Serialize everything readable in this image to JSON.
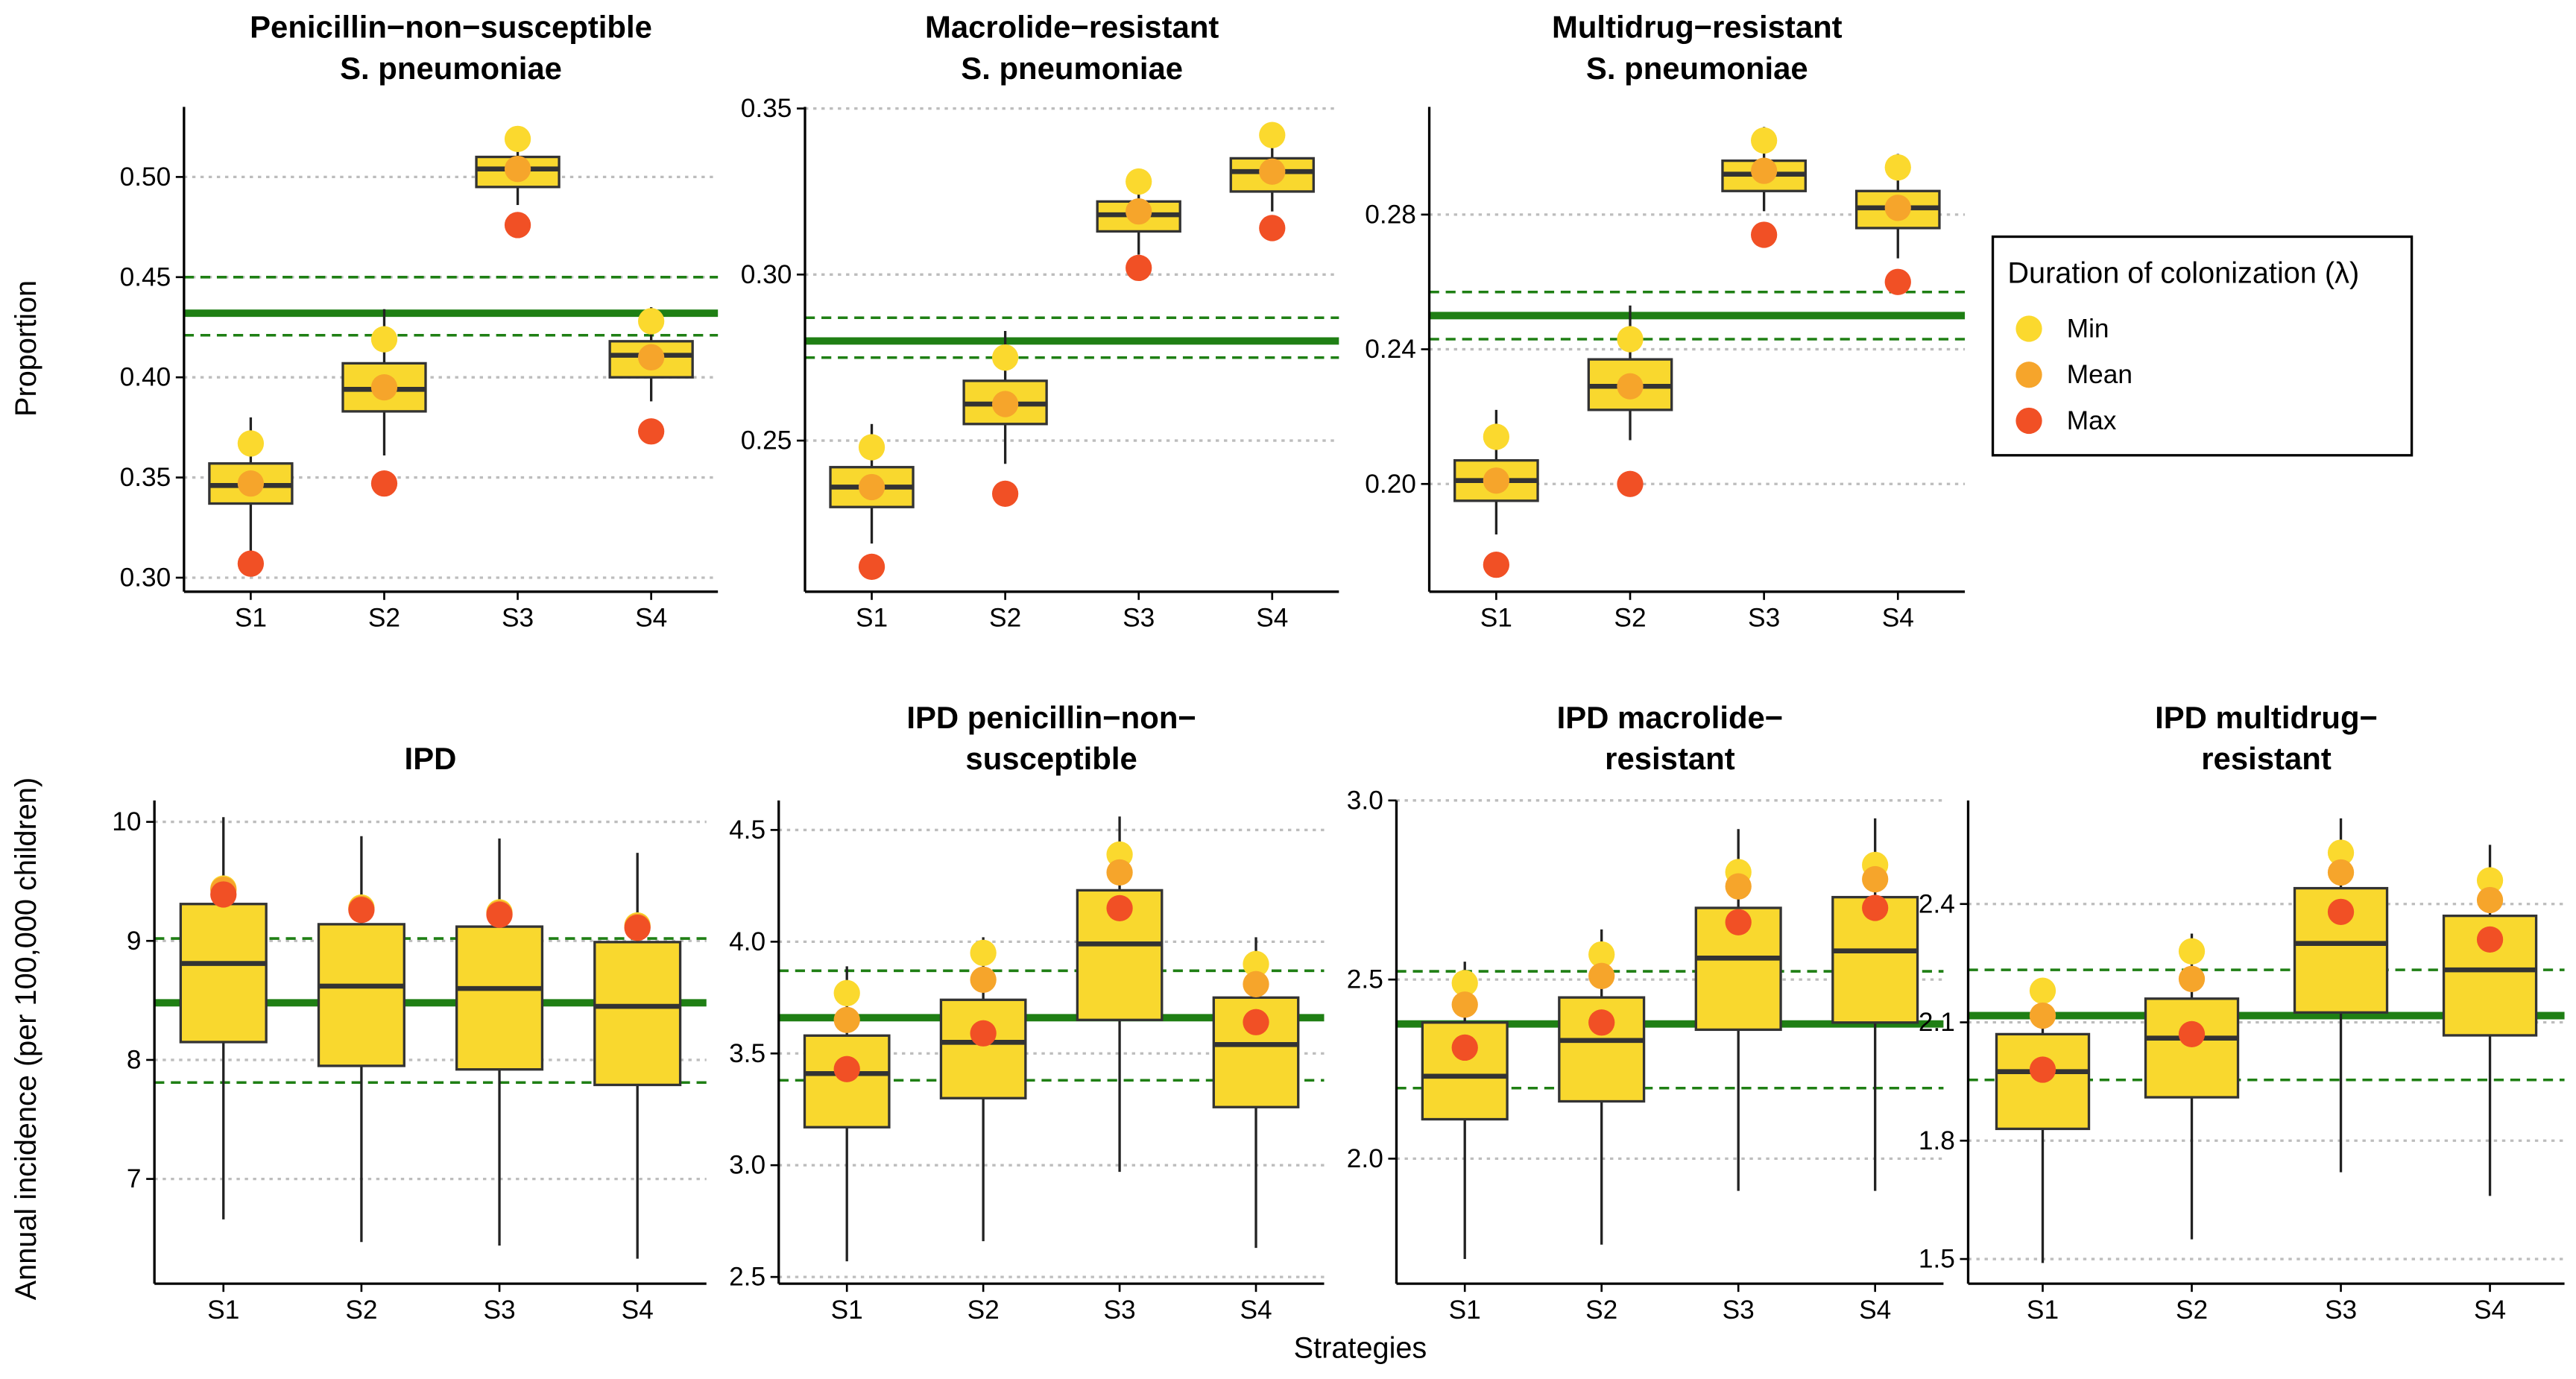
{
  "xlabel": "Strategies",
  "legend_title": "Duration of colonization (λ)",
  "chart_data": [
    {
      "type": "box",
      "title": [
        "Penicillin−non−susceptible",
        "S. pneumoniae"
      ],
      "ylabel": "Proportion",
      "categories": [
        "S1",
        "S2",
        "S3",
        "S4"
      ],
      "whisker_low": [
        0.313,
        0.361,
        0.486,
        0.388
      ],
      "q1": [
        0.337,
        0.383,
        0.495,
        0.4
      ],
      "median": [
        0.346,
        0.394,
        0.504,
        0.411
      ],
      "q3": [
        0.357,
        0.407,
        0.51,
        0.418
      ],
      "whisker_high": [
        0.38,
        0.434,
        0.525,
        0.435
      ],
      "series": [
        {
          "name": "Min",
          "color": "#fbd92e",
          "values": [
            0.367,
            0.419,
            0.519,
            0.428
          ]
        },
        {
          "name": "Mean",
          "color": "#f6a52b",
          "values": [
            0.347,
            0.395,
            0.504,
            0.41
          ]
        },
        {
          "name": "Max",
          "color": "#f15025",
          "values": [
            0.307,
            0.347,
            0.476,
            0.373
          ]
        }
      ],
      "reference": {
        "value": 0.432,
        "low": 0.421,
        "high": 0.45
      },
      "box_color": "#f9d82e",
      "reference_color": "#1f7f14",
      "ylim": [
        0.293,
        0.535
      ],
      "yticks": [
        {
          "value": 0.3,
          "label": "0.30"
        },
        0.35,
        {
          "value": 0.4,
          "label": "0.40"
        },
        0.45,
        {
          "value": 0.5,
          "label": "0.50"
        }
      ],
      "grid": true
    },
    {
      "type": "box",
      "title": [
        "Macrolide−resistant",
        "S. pneumoniae"
      ],
      "categories": [
        "S1",
        "S2",
        "S3",
        "S4"
      ],
      "whisker_low": [
        0.219,
        0.243,
        0.306,
        0.319
      ],
      "q1": [
        0.23,
        0.255,
        0.313,
        0.325
      ],
      "median": [
        0.236,
        0.261,
        0.318,
        0.331
      ],
      "q3": [
        0.242,
        0.268,
        0.322,
        0.335
      ],
      "whisker_high": [
        0.255,
        0.283,
        0.328,
        0.343
      ],
      "series": [
        {
          "name": "Min",
          "color": "#fbd92e",
          "values": [
            0.248,
            0.275,
            0.328,
            0.342
          ]
        },
        {
          "name": "Mean",
          "color": "#f6a52b",
          "values": [
            0.236,
            0.261,
            0.319,
            0.331
          ]
        },
        {
          "name": "Max",
          "color": "#f15025",
          "values": [
            0.212,
            0.234,
            0.302,
            0.314
          ]
        }
      ],
      "reference": {
        "value": 0.28,
        "low": 0.275,
        "high": 0.287
      },
      "box_color": "#f9d82e",
      "reference_color": "#1f7f14",
      "ylim": [
        0.2045,
        0.3505
      ],
      "yticks": [
        0.25,
        {
          "value": 0.3,
          "label": "0.30"
        },
        0.35
      ],
      "grid": true
    },
    {
      "type": "box",
      "title": [
        "Multidrug−resistant",
        "S. pneumoniae"
      ],
      "categories": [
        "S1",
        "S2",
        "S3",
        "S4"
      ],
      "whisker_low": [
        0.185,
        0.213,
        0.281,
        0.267
      ],
      "q1": [
        0.195,
        0.222,
        0.287,
        0.276
      ],
      "median": [
        0.201,
        0.229,
        0.292,
        0.282
      ],
      "q3": [
        0.207,
        0.237,
        0.296,
        0.287
      ],
      "whisker_high": [
        0.222,
        0.253,
        0.306,
        0.298
      ],
      "series": [
        {
          "name": "Min",
          "color": "#fbd92e",
          "values": [
            0.214,
            0.243,
            0.302,
            0.294
          ]
        },
        {
          "name": "Mean",
          "color": "#f6a52b",
          "values": [
            0.201,
            0.229,
            0.293,
            0.282
          ]
        },
        {
          "name": "Max",
          "color": "#f15025",
          "values": [
            0.176,
            0.2,
            0.274,
            0.26
          ]
        }
      ],
      "reference": {
        "value": 0.25,
        "low": 0.243,
        "high": 0.257
      },
      "box_color": "#f9d82e",
      "reference_color": "#1f7f14",
      "ylim": [
        0.168,
        0.312
      ],
      "yticks": [
        {
          "value": 0.2,
          "label": "0.20"
        },
        0.24,
        0.28
      ],
      "grid": true
    },
    {
      "type": "box",
      "title": [
        "IPD"
      ],
      "ylabel": "Annual incidence (per 100,000 children)",
      "categories": [
        "S1",
        "S2",
        "S3",
        "S4"
      ],
      "whisker_low": [
        6.66,
        6.47,
        6.44,
        6.33
      ],
      "q1": [
        8.15,
        7.95,
        7.92,
        7.79
      ],
      "median": [
        8.81,
        8.62,
        8.6,
        8.45
      ],
      "q3": [
        9.31,
        9.14,
        9.12,
        8.99
      ],
      "whisker_high": [
        10.04,
        9.88,
        9.86,
        9.74
      ],
      "series": [
        {
          "name": "Min",
          "color": "#fbd92e",
          "values": [
            9.44,
            9.28,
            9.24,
            9.13
          ]
        },
        {
          "name": "Mean",
          "color": "#f6a52b",
          "values": [
            9.43,
            9.27,
            9.23,
            9.12
          ]
        },
        {
          "name": "Max",
          "color": "#f15025",
          "values": [
            9.39,
            9.26,
            9.22,
            9.11
          ]
        }
      ],
      "reference": {
        "value": 8.48,
        "low": 7.81,
        "high": 9.02
      },
      "box_color": "#f9d82e",
      "reference_color": "#1f7f14",
      "ylim": [
        6.12,
        10.18
      ],
      "yticks": [
        7,
        8,
        9,
        10
      ],
      "grid": true
    },
    {
      "type": "box",
      "title": [
        "IPD penicillin−non−",
        "susceptible"
      ],
      "categories": [
        "S1",
        "S2",
        "S3",
        "S4"
      ],
      "whisker_low": [
        2.57,
        2.66,
        2.97,
        2.63
      ],
      "q1": [
        3.17,
        3.3,
        3.65,
        3.26
      ],
      "median": [
        3.41,
        3.55,
        3.99,
        3.54
      ],
      "q3": [
        3.58,
        3.74,
        4.23,
        3.75
      ],
      "whisker_high": [
        3.89,
        4.02,
        4.56,
        4.02
      ],
      "series": [
        {
          "name": "Min",
          "color": "#fbd92e",
          "values": [
            3.77,
            3.95,
            4.39,
            3.9
          ]
        },
        {
          "name": "Mean",
          "color": "#f6a52b",
          "values": [
            3.65,
            3.83,
            4.31,
            3.81
          ]
        },
        {
          "name": "Max",
          "color": "#f15025",
          "values": [
            3.43,
            3.59,
            4.15,
            3.64
          ]
        }
      ],
      "reference": {
        "value": 3.66,
        "low": 3.38,
        "high": 3.87
      },
      "box_color": "#f9d82e",
      "reference_color": "#1f7f14",
      "ylim": [
        2.47,
        4.632
      ],
      "yticks": [
        2.5,
        {
          "value": 3,
          "label": "3.0"
        },
        3.5,
        {
          "value": 4,
          "label": "4.0"
        },
        4.5
      ],
      "grid": true
    },
    {
      "type": "box",
      "title": [
        "IPD macrolide−",
        "resistant"
      ],
      "categories": [
        "S1",
        "S2",
        "S3",
        "S4"
      ],
      "whisker_low": [
        1.72,
        1.76,
        1.91,
        1.91
      ],
      "q1": [
        2.11,
        2.16,
        2.36,
        2.38
      ],
      "median": [
        2.23,
        2.33,
        2.56,
        2.58
      ],
      "q3": [
        2.38,
        2.45,
        2.7,
        2.73
      ],
      "whisker_high": [
        2.55,
        2.64,
        2.92,
        2.95
      ],
      "series": [
        {
          "name": "Min",
          "color": "#fbd92e",
          "values": [
            2.49,
            2.57,
            2.8,
            2.82
          ]
        },
        {
          "name": "Mean",
          "color": "#f6a52b",
          "values": [
            2.43,
            2.51,
            2.76,
            2.78
          ]
        },
        {
          "name": "Max",
          "color": "#f15025",
          "values": [
            2.31,
            2.38,
            2.66,
            2.7
          ]
        }
      ],
      "reference": {
        "value": 2.376,
        "low": 2.197,
        "high": 2.523
      },
      "box_color": "#f9d82e",
      "reference_color": "#1f7f14",
      "ylim": [
        1.651,
        3.0
      ],
      "yticks": [
        {
          "value": 2,
          "label": "2.0"
        },
        2.5,
        {
          "value": 3,
          "label": "3.0"
        }
      ],
      "grid": true
    },
    {
      "type": "box",
      "title": [
        "IPD multidrug−",
        "resistant"
      ],
      "categories": [
        "S1",
        "S2",
        "S3",
        "S4"
      ],
      "whisker_low": [
        1.49,
        1.55,
        1.72,
        1.66
      ],
      "q1": [
        1.83,
        1.91,
        2.125,
        2.067
      ],
      "median": [
        1.975,
        2.06,
        2.3,
        2.233
      ],
      "q3": [
        2.07,
        2.16,
        2.44,
        2.37
      ],
      "whisker_high": [
        2.2,
        2.325,
        2.617,
        2.55
      ],
      "series": [
        {
          "name": "Min",
          "color": "#fbd92e",
          "values": [
            2.18,
            2.28,
            2.53,
            2.46
          ]
        },
        {
          "name": "Mean",
          "color": "#f6a52b",
          "values": [
            2.117,
            2.21,
            2.48,
            2.41
          ]
        },
        {
          "name": "Max",
          "color": "#f15025",
          "values": [
            1.98,
            2.07,
            2.38,
            2.31
          ]
        }
      ],
      "reference": {
        "value": 2.117,
        "low": 1.954,
        "high": 2.233
      },
      "box_color": "#f9d82e",
      "reference_color": "#1f7f14",
      "ylim": [
        1.4375,
        2.6625
      ],
      "yticks": [
        1.5,
        1.8,
        2.1,
        2.4
      ],
      "grid": true
    }
  ]
}
